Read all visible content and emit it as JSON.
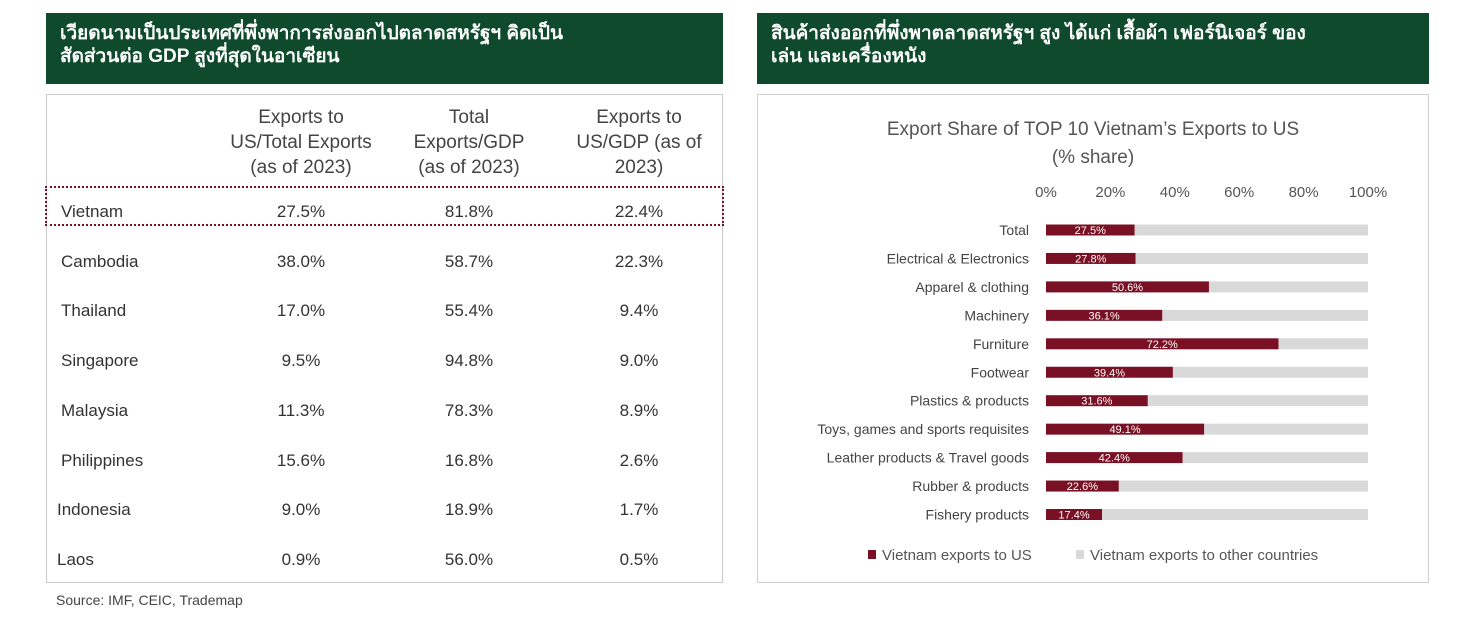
{
  "left_banner": {
    "line1": "เวียดนามเป็นประเทศที่พึ่งพาการส่งออกไปตลาดสหรัฐฯ คิดเป็น",
    "line2": "สัดส่วนต่อ GDP สูงที่สุดในอาเซียน"
  },
  "right_banner": {
    "line1": "สินค้าส่งออกที่พึ่งพาตลาดสหรัฐฯ สูง ได้แก่ เสื้อผ้า เฟอร์นิเจอร์ ของ",
    "line2": "เล่น และเครื่องหนัง"
  },
  "table": {
    "headers": [
      [
        "Exports to",
        "US/Total Exports",
        "(as of 2023)"
      ],
      [
        "Total",
        "Exports/GDP",
        "(as of 2023)"
      ],
      [
        "Exports to",
        "US/GDP (as of",
        "2023)"
      ]
    ],
    "rows": [
      {
        "country": "Vietnam",
        "c1": "27.5%",
        "c2": "81.8%",
        "c3": "22.4%"
      },
      {
        "country": "Cambodia",
        "c1": "38.0%",
        "c2": "58.7%",
        "c3": "22.3%"
      },
      {
        "country": "Thailand",
        "c1": "17.0%",
        "c2": "55.4%",
        "c3": "9.4%"
      },
      {
        "country": "Singapore",
        "c1": "9.5%",
        "c2": "94.8%",
        "c3": "9.0%"
      },
      {
        "country": "Malaysia",
        "c1": "11.3%",
        "c2": "78.3%",
        "c3": "8.9%"
      },
      {
        "country": "Philippines",
        "c1": "15.6%",
        "c2": "16.8%",
        "c3": "2.6%"
      },
      {
        "country": "Indonesia",
        "c1": "9.0%",
        "c2": "18.9%",
        "c3": "1.7%"
      },
      {
        "country": "Laos",
        "c1": "0.9%",
        "c2": "56.0%",
        "c3": "0.5%"
      }
    ]
  },
  "source": "Source: IMF, CEIC, Trademap",
  "chart_data": {
    "type": "bar",
    "orientation": "horizontal",
    "stacked": true,
    "title": "Export Share of TOP 10 Vietnam’s Exports to US",
    "subtitle": "(% share)",
    "xlim": [
      0,
      100
    ],
    "x_ticks": [
      "0%",
      "20%",
      "40%",
      "60%",
      "80%",
      "100%"
    ],
    "categories": [
      "Total",
      "Electrical & Electronics",
      "Apparel & clothing",
      "Machinery",
      "Furniture",
      "Footwear",
      "Plastics & products",
      "Toys, games and sports requisites",
      "Leather products & Travel goods",
      "Rubber & products",
      "Fishery products"
    ],
    "series": [
      {
        "name": "Vietnam exports to US",
        "color": "#7a1024",
        "values": [
          27.5,
          27.8,
          50.6,
          36.1,
          72.2,
          39.4,
          31.6,
          49.1,
          42.4,
          22.6,
          17.4
        ]
      },
      {
        "name": "Vietnam exports to other countries",
        "color": "#d9d9d9",
        "values": [
          72.5,
          72.2,
          49.4,
          63.9,
          27.8,
          60.6,
          68.4,
          50.9,
          57.6,
          77.4,
          82.6
        ]
      }
    ],
    "data_labels": [
      "27.5%",
      "27.8%",
      "50.6%",
      "36.1%",
      "72.2%",
      "39.4%",
      "31.6%",
      "49.1%",
      "42.4%",
      "22.6%",
      "17.4%"
    ],
    "legend_position": "bottom"
  }
}
